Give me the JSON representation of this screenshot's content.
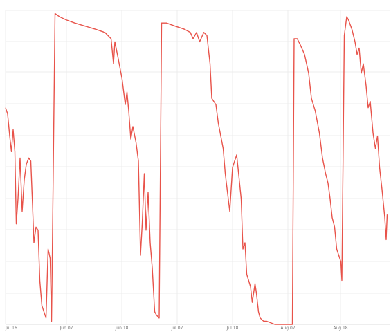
{
  "chart_data": {
    "type": "line",
    "x_tick_labels": [
      "Jul 16",
      "Jun 07",
      "Jun 18",
      "Jul 07",
      "Jul 18",
      "Aug 07",
      "Aug 18"
    ],
    "grid": true,
    "legend": "none",
    "series_color": "#e8534a",
    "grid_color": "#ececec",
    "ylim": [
      0,
      100
    ],
    "x_unit": "day index (axis printed as dates; sampled approximately)",
    "series": [
      {
        "points": [
          [
            0,
            69
          ],
          [
            0.6,
            67
          ],
          [
            1.2,
            60
          ],
          [
            1.7,
            55
          ],
          [
            2.2,
            62
          ],
          [
            2.7,
            55
          ],
          [
            3.1,
            32
          ],
          [
            3.6,
            40
          ],
          [
            4.2,
            53
          ],
          [
            4.8,
            36
          ],
          [
            5.4,
            46
          ],
          [
            6.0,
            51
          ],
          [
            6.7,
            53
          ],
          [
            7.3,
            52
          ],
          [
            7.8,
            38
          ],
          [
            8.2,
            26
          ],
          [
            8.8,
            31
          ],
          [
            9.4,
            30
          ],
          [
            9.9,
            14
          ],
          [
            10.5,
            6
          ],
          [
            11.1,
            4
          ],
          [
            11.7,
            2
          ],
          [
            12.3,
            24
          ],
          [
            12.9,
            21
          ],
          [
            13.3,
            1
          ],
          [
            14.3,
            99
          ],
          [
            15.6,
            98
          ],
          [
            17.5,
            97
          ],
          [
            20,
            96
          ],
          [
            23,
            95
          ],
          [
            26,
            94
          ],
          [
            28.7,
            93
          ],
          [
            30.5,
            91
          ],
          [
            31.2,
            83
          ],
          [
            31.6,
            90
          ],
          [
            32.5,
            85
          ],
          [
            33.7,
            78
          ],
          [
            34.6,
            70
          ],
          [
            35.1,
            74
          ],
          [
            35.6,
            68
          ],
          [
            36.2,
            59
          ],
          [
            36.8,
            63
          ],
          [
            37.7,
            58
          ],
          [
            38.4,
            52
          ],
          [
            39,
            22
          ],
          [
            39.5,
            32
          ],
          [
            40.1,
            48
          ],
          [
            40.6,
            30
          ],
          [
            41.2,
            42
          ],
          [
            41.8,
            26
          ],
          [
            42.4,
            18
          ],
          [
            43.1,
            4
          ],
          [
            43.6,
            3
          ],
          [
            44.4,
            2
          ],
          [
            45.1,
            96
          ],
          [
            46.5,
            96
          ],
          [
            49,
            95
          ],
          [
            51.7,
            94
          ],
          [
            53.4,
            93
          ],
          [
            54.2,
            91
          ],
          [
            55.2,
            93
          ],
          [
            56.1,
            90
          ],
          [
            57.3,
            93
          ],
          [
            58.2,
            92
          ],
          [
            59.1,
            83
          ],
          [
            59.6,
            72
          ],
          [
            60.8,
            70
          ],
          [
            61.5,
            64
          ],
          [
            62.9,
            56
          ],
          [
            63.5,
            48
          ],
          [
            64.8,
            36
          ],
          [
            65.6,
            50
          ],
          [
            66.8,
            54
          ],
          [
            68.1,
            40
          ],
          [
            68.6,
            24
          ],
          [
            69.2,
            26
          ],
          [
            69.7,
            16
          ],
          [
            70.8,
            12
          ],
          [
            71.3,
            7
          ],
          [
            72.1,
            13
          ],
          [
            72.5,
            10
          ],
          [
            73.1,
            4
          ],
          [
            73.6,
            2
          ],
          [
            74.6,
            1
          ],
          [
            75.5,
            1
          ],
          [
            77.8,
            0
          ],
          [
            81.4,
            0
          ],
          [
            82.9,
            0
          ],
          [
            83.4,
            91
          ],
          [
            84.3,
            91
          ],
          [
            85.2,
            89
          ],
          [
            86.4,
            86
          ],
          [
            87.6,
            80
          ],
          [
            88.4,
            72
          ],
          [
            89.5,
            68
          ],
          [
            90.7,
            61
          ],
          [
            91.6,
            53
          ],
          [
            92.5,
            48
          ],
          [
            93.2,
            45
          ],
          [
            93.8,
            40
          ],
          [
            94.4,
            34
          ],
          [
            95.1,
            31
          ],
          [
            95.7,
            24
          ],
          [
            96.3,
            22
          ],
          [
            96.9,
            20
          ],
          [
            97.2,
            14
          ],
          [
            97.9,
            92
          ],
          [
            98.6,
            98
          ],
          [
            99.1,
            97
          ],
          [
            100.1,
            94
          ],
          [
            101,
            90
          ],
          [
            101.6,
            86
          ],
          [
            102.2,
            88
          ],
          [
            102.8,
            80
          ],
          [
            103.4,
            83
          ],
          [
            104.2,
            76
          ],
          [
            104.8,
            69
          ],
          [
            105.4,
            71
          ],
          [
            106.2,
            61
          ],
          [
            106.9,
            56
          ],
          [
            107.5,
            60
          ],
          [
            108.1,
            50
          ],
          [
            108.8,
            43
          ],
          [
            109.6,
            34
          ],
          [
            110,
            27
          ],
          [
            110.3,
            35
          ]
        ]
      }
    ]
  }
}
